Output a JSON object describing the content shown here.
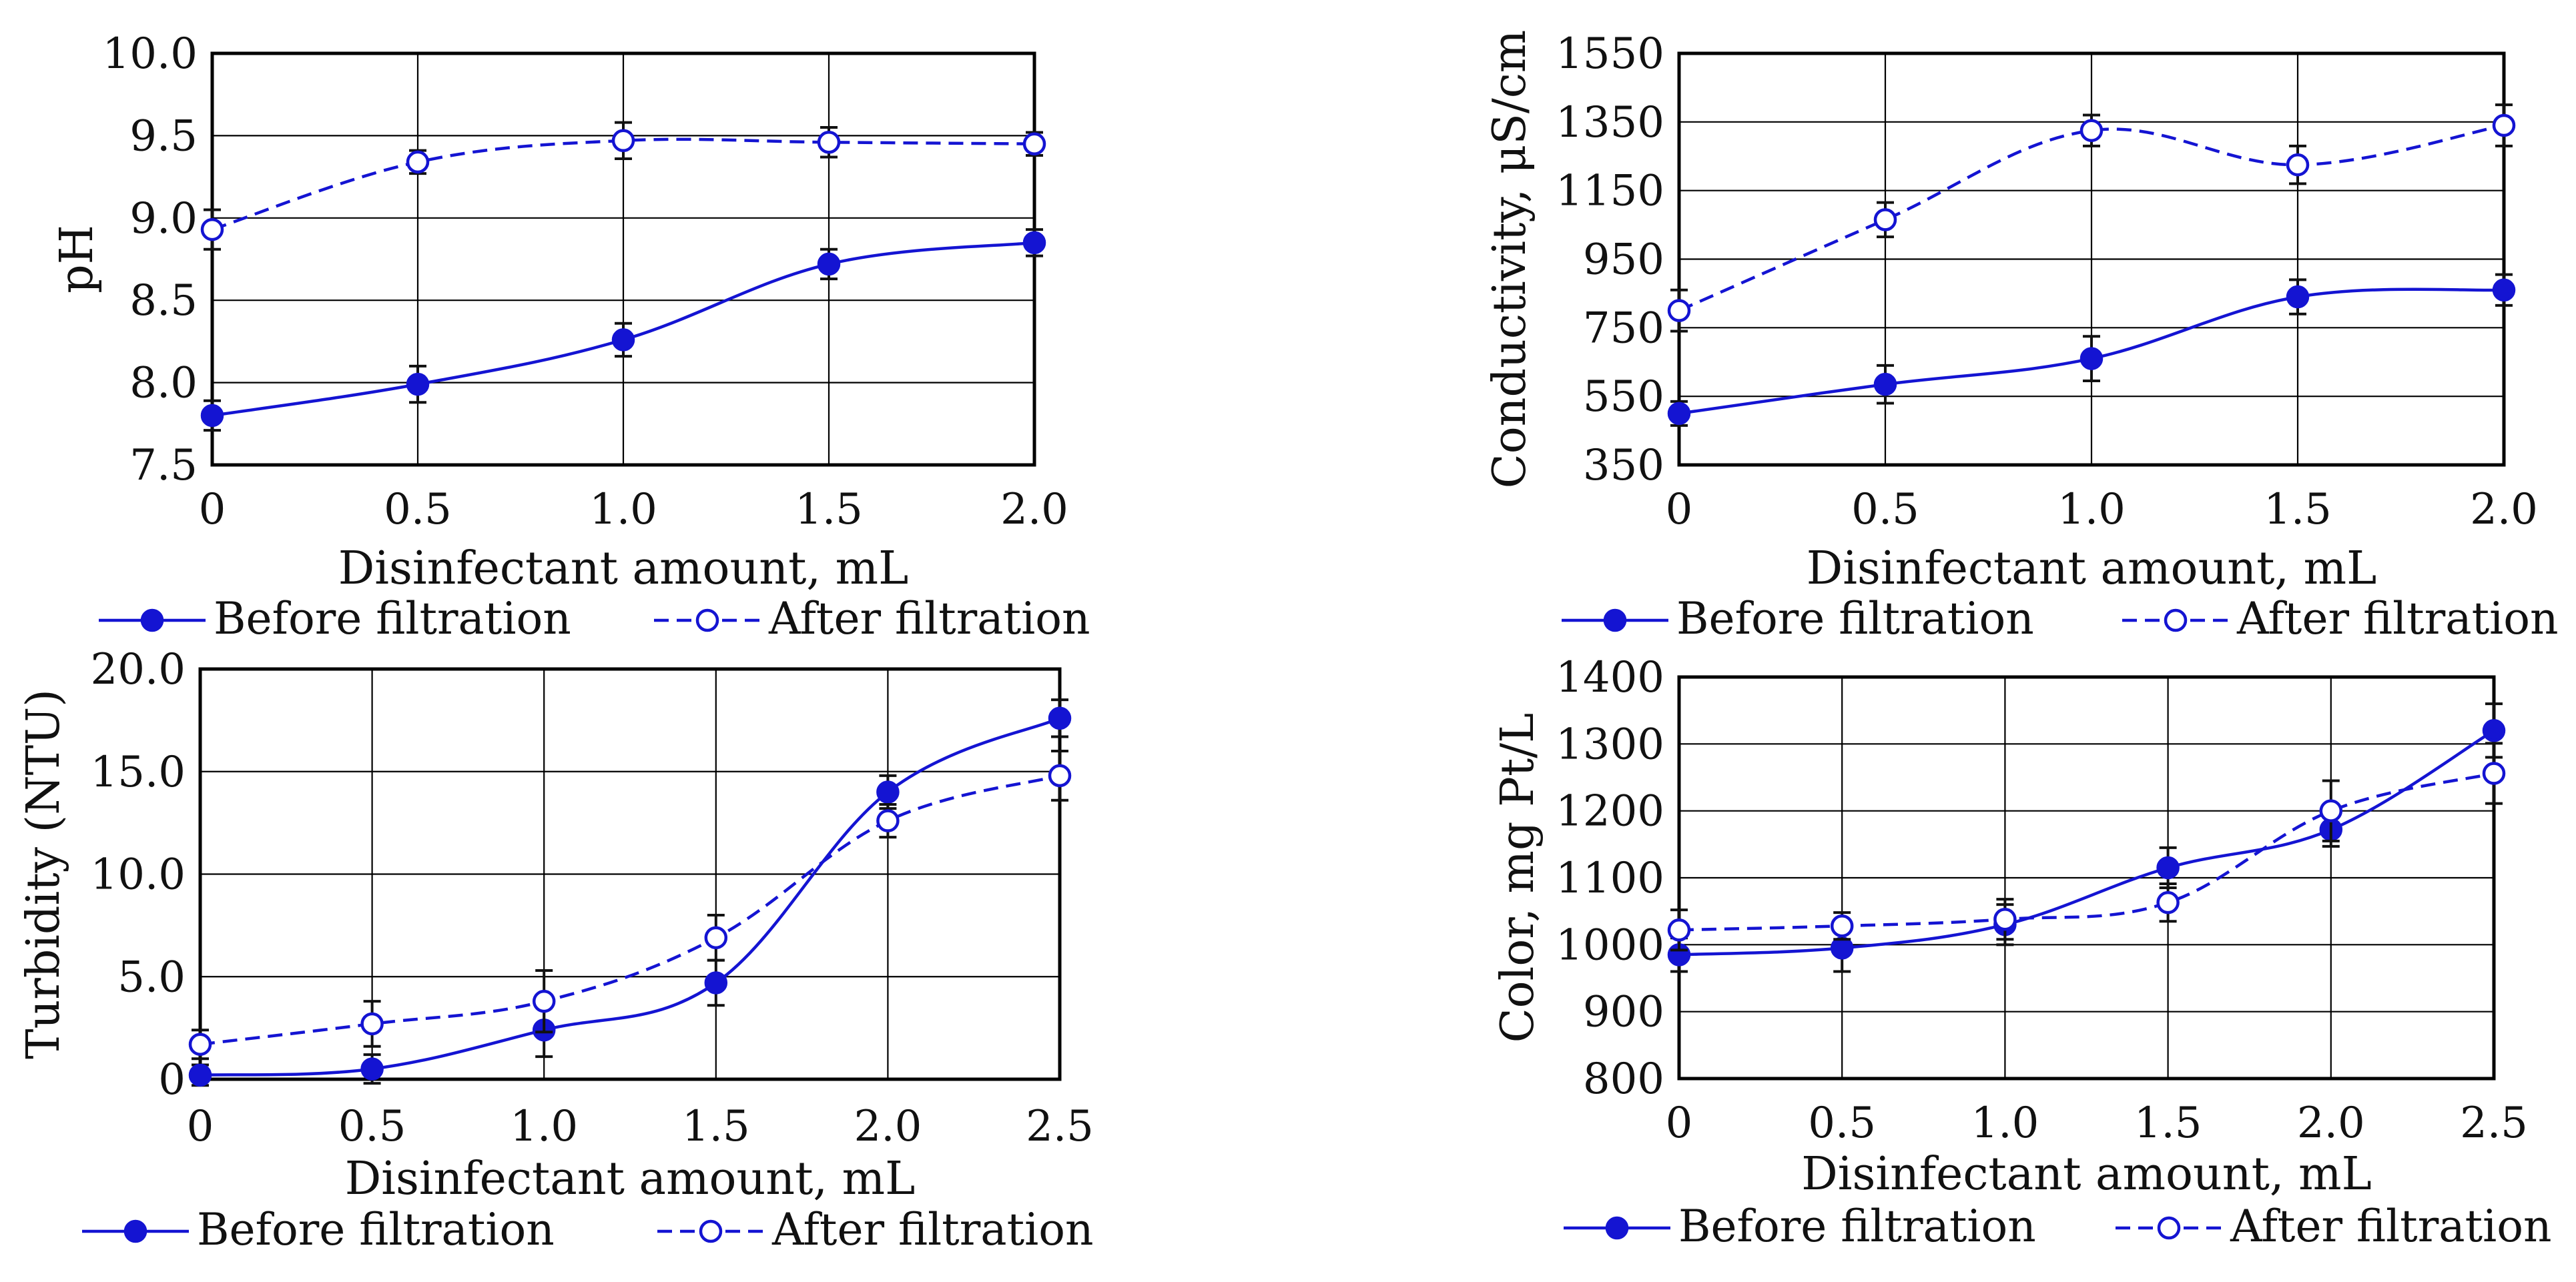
{
  "colors": {
    "series": "#1414d2",
    "axis": "#000000",
    "grid": "#000000",
    "errorbar": "#111111"
  },
  "chart_data": [
    {
      "type": "line",
      "panel": "top-left",
      "title": "",
      "xlabel": "Disinfectant amount, mL",
      "ylabel": "pH",
      "x": [
        0,
        0.5,
        1.0,
        1.5,
        2.0
      ],
      "x_ticks": [
        "0",
        "0.5",
        "1.0",
        "1.5",
        "2.0"
      ],
      "y_ticks": [
        "7.5",
        "8.0",
        "8.5",
        "9.0",
        "9.5",
        "10.0"
      ],
      "xlim": [
        0,
        2.0
      ],
      "ylim": [
        7.5,
        10.0
      ],
      "grid": true,
      "legend_position": "bottom",
      "series": [
        {
          "name": "Before filtration",
          "marker": "filled",
          "dash": "solid",
          "values": [
            7.8,
            7.99,
            8.26,
            8.72,
            8.85
          ],
          "errors": [
            0.09,
            0.11,
            0.1,
            0.09,
            0.08
          ]
        },
        {
          "name": "After filtration",
          "marker": "open",
          "dash": "dashed",
          "values": [
            8.93,
            9.34,
            9.47,
            9.46,
            9.45
          ],
          "errors": [
            0.12,
            0.07,
            0.11,
            0.09,
            0.07
          ]
        }
      ]
    },
    {
      "type": "line",
      "panel": "top-right",
      "title": "",
      "xlabel": "Disinfectant amount, mL",
      "ylabel": "Conductivity, μS/cm",
      "x": [
        0,
        0.5,
        1.0,
        1.5,
        2.0
      ],
      "x_ticks": [
        "0",
        "0.5",
        "1.0",
        "1.5",
        "2.0"
      ],
      "y_ticks": [
        "350",
        "550",
        "750",
        "950",
        "1150",
        "1350",
        "1550"
      ],
      "xlim": [
        0,
        2.0
      ],
      "ylim": [
        350,
        1550
      ],
      "grid": true,
      "legend_position": "bottom",
      "series": [
        {
          "name": "Before filtration",
          "marker": "filled",
          "dash": "solid",
          "values": [
            500,
            585,
            660,
            840,
            860
          ],
          "errors": [
            35,
            55,
            65,
            50,
            45
          ]
        },
        {
          "name": "After filtration",
          "marker": "open",
          "dash": "dashed",
          "values": [
            800,
            1065,
            1325,
            1225,
            1340
          ],
          "errors": [
            60,
            50,
            45,
            55,
            60
          ]
        }
      ]
    },
    {
      "type": "line",
      "panel": "bottom-left",
      "title": "",
      "xlabel": "Disinfectant amount, mL",
      "ylabel": "Turbidity (NTU)",
      "x": [
        0,
        0.5,
        1.0,
        1.5,
        2.0,
        2.5
      ],
      "x_ticks": [
        "0",
        "0.5",
        "1.0",
        "1.5",
        "2.0",
        "2.5"
      ],
      "y_ticks": [
        "0",
        "5.0",
        "10.0",
        "15.0",
        "20.0"
      ],
      "xlim": [
        0,
        2.5
      ],
      "ylim": [
        0,
        20
      ],
      "grid": true,
      "legend_position": "bottom",
      "series": [
        {
          "name": "Before filtration",
          "marker": "filled",
          "dash": "solid",
          "values": [
            0.2,
            0.5,
            2.4,
            4.7,
            14.0,
            17.6
          ],
          "errors": [
            0.5,
            0.7,
            1.3,
            1.1,
            0.8,
            0.9
          ]
        },
        {
          "name": "After filtration",
          "marker": "open",
          "dash": "dashed",
          "values": [
            1.7,
            2.7,
            3.8,
            6.9,
            12.6,
            14.8
          ],
          "errors": [
            0.7,
            1.1,
            1.5,
            1.1,
            0.8,
            1.2
          ]
        }
      ]
    },
    {
      "type": "line",
      "panel": "bottom-right",
      "title": "",
      "xlabel": "Disinfectant amount, mL",
      "ylabel": "Color, mg Pt/L",
      "x": [
        0,
        0.5,
        1.0,
        1.5,
        2.0,
        2.5
      ],
      "x_ticks": [
        "0",
        "0.5",
        "1.0",
        "1.5",
        "2.0",
        "2.5"
      ],
      "y_ticks": [
        "800",
        "900",
        "1000",
        "1100",
        "1200",
        "1300",
        "1400"
      ],
      "xlim": [
        0,
        2.5
      ],
      "ylim": [
        800,
        1400
      ],
      "grid": true,
      "legend_position": "bottom",
      "series": [
        {
          "name": "Before filtration",
          "marker": "filled",
          "dash": "solid",
          "values": [
            985,
            995,
            1030,
            1115,
            1172,
            1320
          ],
          "errors": [
            25,
            35,
            30,
            30,
            25,
            40
          ]
        },
        {
          "name": "After filtration",
          "marker": "open",
          "dash": "dashed",
          "values": [
            1022,
            1028,
            1038,
            1063,
            1200,
            1256
          ],
          "errors": [
            30,
            20,
            30,
            28,
            45,
            45
          ]
        }
      ]
    }
  ]
}
